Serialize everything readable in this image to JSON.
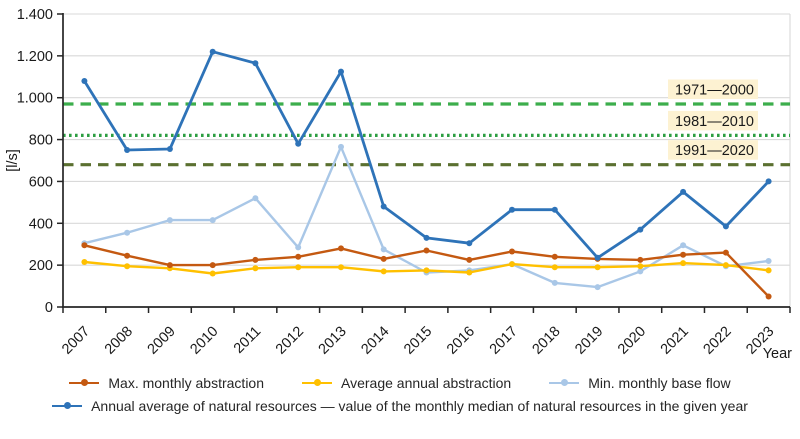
{
  "chart_data": {
    "type": "line",
    "title": "",
    "xlabel": "Year",
    "ylabel": "[l/s]",
    "ylim": [
      0,
      1400
    ],
    "ytick_step": 200,
    "ytick_labels": [
      "0",
      "200",
      "400",
      "600",
      "800",
      "1.000",
      "1.200",
      "1.400"
    ],
    "grid": true,
    "legend_position": "bottom",
    "categories": [
      "2007",
      "2008",
      "2009",
      "2010",
      "2011",
      "2012",
      "2013",
      "2014",
      "2015",
      "2016",
      "2017",
      "2018",
      "2019",
      "2020",
      "2021",
      "2022",
      "2023"
    ],
    "series": [
      {
        "name": "Max. monthly abstraction",
        "color": "#c45911",
        "z": 2,
        "values": [
          295,
          245,
          200,
          200,
          225,
          240,
          280,
          230,
          270,
          225,
          265,
          240,
          230,
          225,
          250,
          260,
          50
        ]
      },
      {
        "name": "Average annual abstraction",
        "color": "#ffc000",
        "z": 1,
        "values": [
          215,
          195,
          185,
          160,
          185,
          190,
          190,
          170,
          175,
          165,
          205,
          190,
          190,
          195,
          210,
          200,
          175
        ]
      },
      {
        "name": "Min. monthly base flow",
        "color": "#a9c7e7",
        "z": 0,
        "values": [
          305,
          355,
          415,
          415,
          520,
          285,
          765,
          275,
          165,
          175,
          205,
          115,
          95,
          170,
          295,
          195,
          220
        ]
      },
      {
        "name": "Annual average of natural resources — value of the monthly median of natural resources in the given year",
        "color": "#2e73b8",
        "z": 3,
        "values": [
          1080,
          750,
          755,
          1220,
          1165,
          780,
          1125,
          480,
          330,
          305,
          465,
          465,
          235,
          370,
          550,
          385,
          600
        ]
      }
    ],
    "legend_rows": [
      [
        0,
        1,
        2
      ],
      [
        3
      ]
    ],
    "reference_lines": [
      {
        "label": "1971—2000",
        "value": 970,
        "color": "#3cae4c",
        "style": "dashed"
      },
      {
        "label": "1981—2010",
        "value": 820,
        "color": "#2d9e42",
        "style": "dotted"
      },
      {
        "label": "1991—2020",
        "value": 680,
        "color": "#5b7030",
        "style": "dashed"
      }
    ],
    "label_bg": "#fdf2d2",
    "colors": {
      "gridline": "#d9d9d9",
      "axis": "#262626",
      "text": "#1a1a1a"
    }
  }
}
